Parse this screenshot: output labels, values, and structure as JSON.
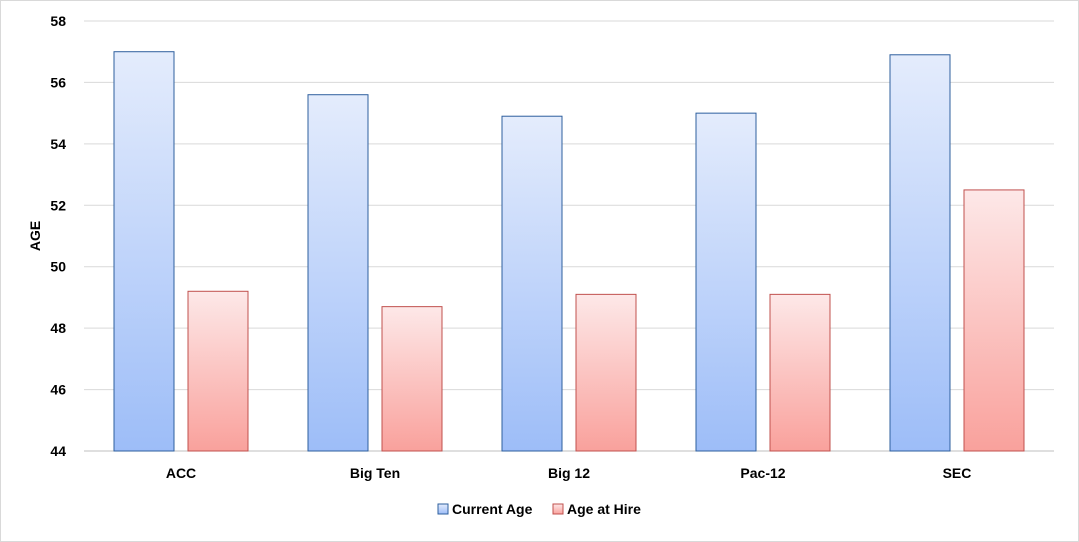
{
  "chart_data": {
    "type": "bar",
    "title": "",
    "xlabel": "",
    "ylabel": "AGE",
    "ylim": [
      44,
      58
    ],
    "yticks": [
      44,
      46,
      48,
      50,
      52,
      54,
      56,
      58
    ],
    "grid": true,
    "legend_position": "bottom",
    "categories": [
      "ACC",
      "Big Ten",
      "Big 12",
      "Pac-12",
      "SEC"
    ],
    "series": [
      {
        "name": "Current Age",
        "values": [
          57.0,
          55.6,
          54.9,
          55.0,
          56.9
        ],
        "color_top": "#e4ecfc",
        "color_bottom": "#9dbdf8",
        "stroke": "#2e5f9e"
      },
      {
        "name": "Age at Hire",
        "values": [
          49.2,
          48.7,
          49.1,
          49.1,
          52.5
        ],
        "color_top": "#fde8e8",
        "color_bottom": "#f9a19c",
        "stroke": "#c0504d"
      }
    ]
  }
}
